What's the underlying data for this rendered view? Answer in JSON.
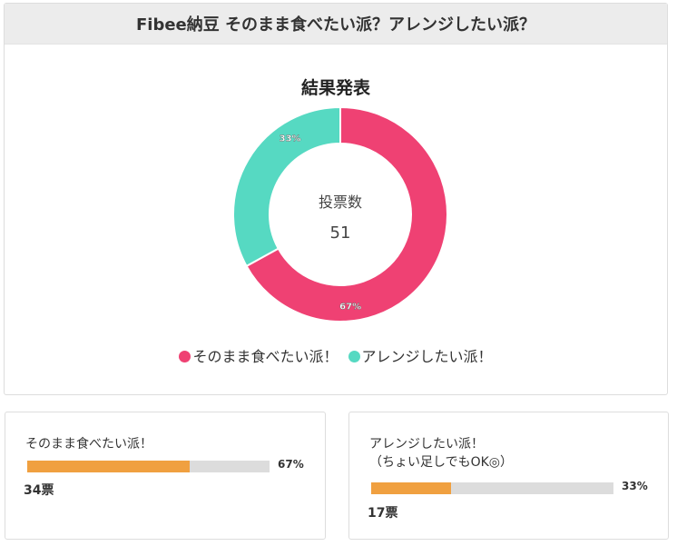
{
  "header": {
    "title": "Fibee納豆 そのまま食べたい派？アレンジしたい派？"
  },
  "result": {
    "title": "結果発表",
    "center_label": "投票数",
    "total_votes": "51"
  },
  "legend": [
    {
      "label": "そのまま食べたい派！",
      "color": "#ef4173"
    },
    {
      "label": "アレンジしたい派！",
      "color": "#56d9c2"
    }
  ],
  "options": [
    {
      "label_line1": "そのまま食べたい派！",
      "label_line2": "",
      "percent": "67%",
      "percent_value": 67,
      "votes": "34票"
    },
    {
      "label_line1": "アレンジしたい派！",
      "label_line2": "（ちょい足しでもOK◎）",
      "percent": "33%",
      "percent_value": 33,
      "votes": "17票"
    }
  ],
  "colors": {
    "bar_fill": "#f0a040",
    "bar_track": "#dcdcdc",
    "header_bg": "#ececec"
  },
  "chart_data": {
    "type": "pie",
    "title": "結果発表",
    "subtitle": "投票数 51",
    "categories": [
      "そのまま食べたい派！",
      "アレンジしたい派！"
    ],
    "values": [
      67,
      33
    ],
    "votes": [
      34,
      17
    ],
    "data_labels": [
      "67%",
      "33%"
    ],
    "colors": [
      "#ef4173",
      "#56d9c2"
    ],
    "donut": true,
    "legend_position": "bottom"
  }
}
